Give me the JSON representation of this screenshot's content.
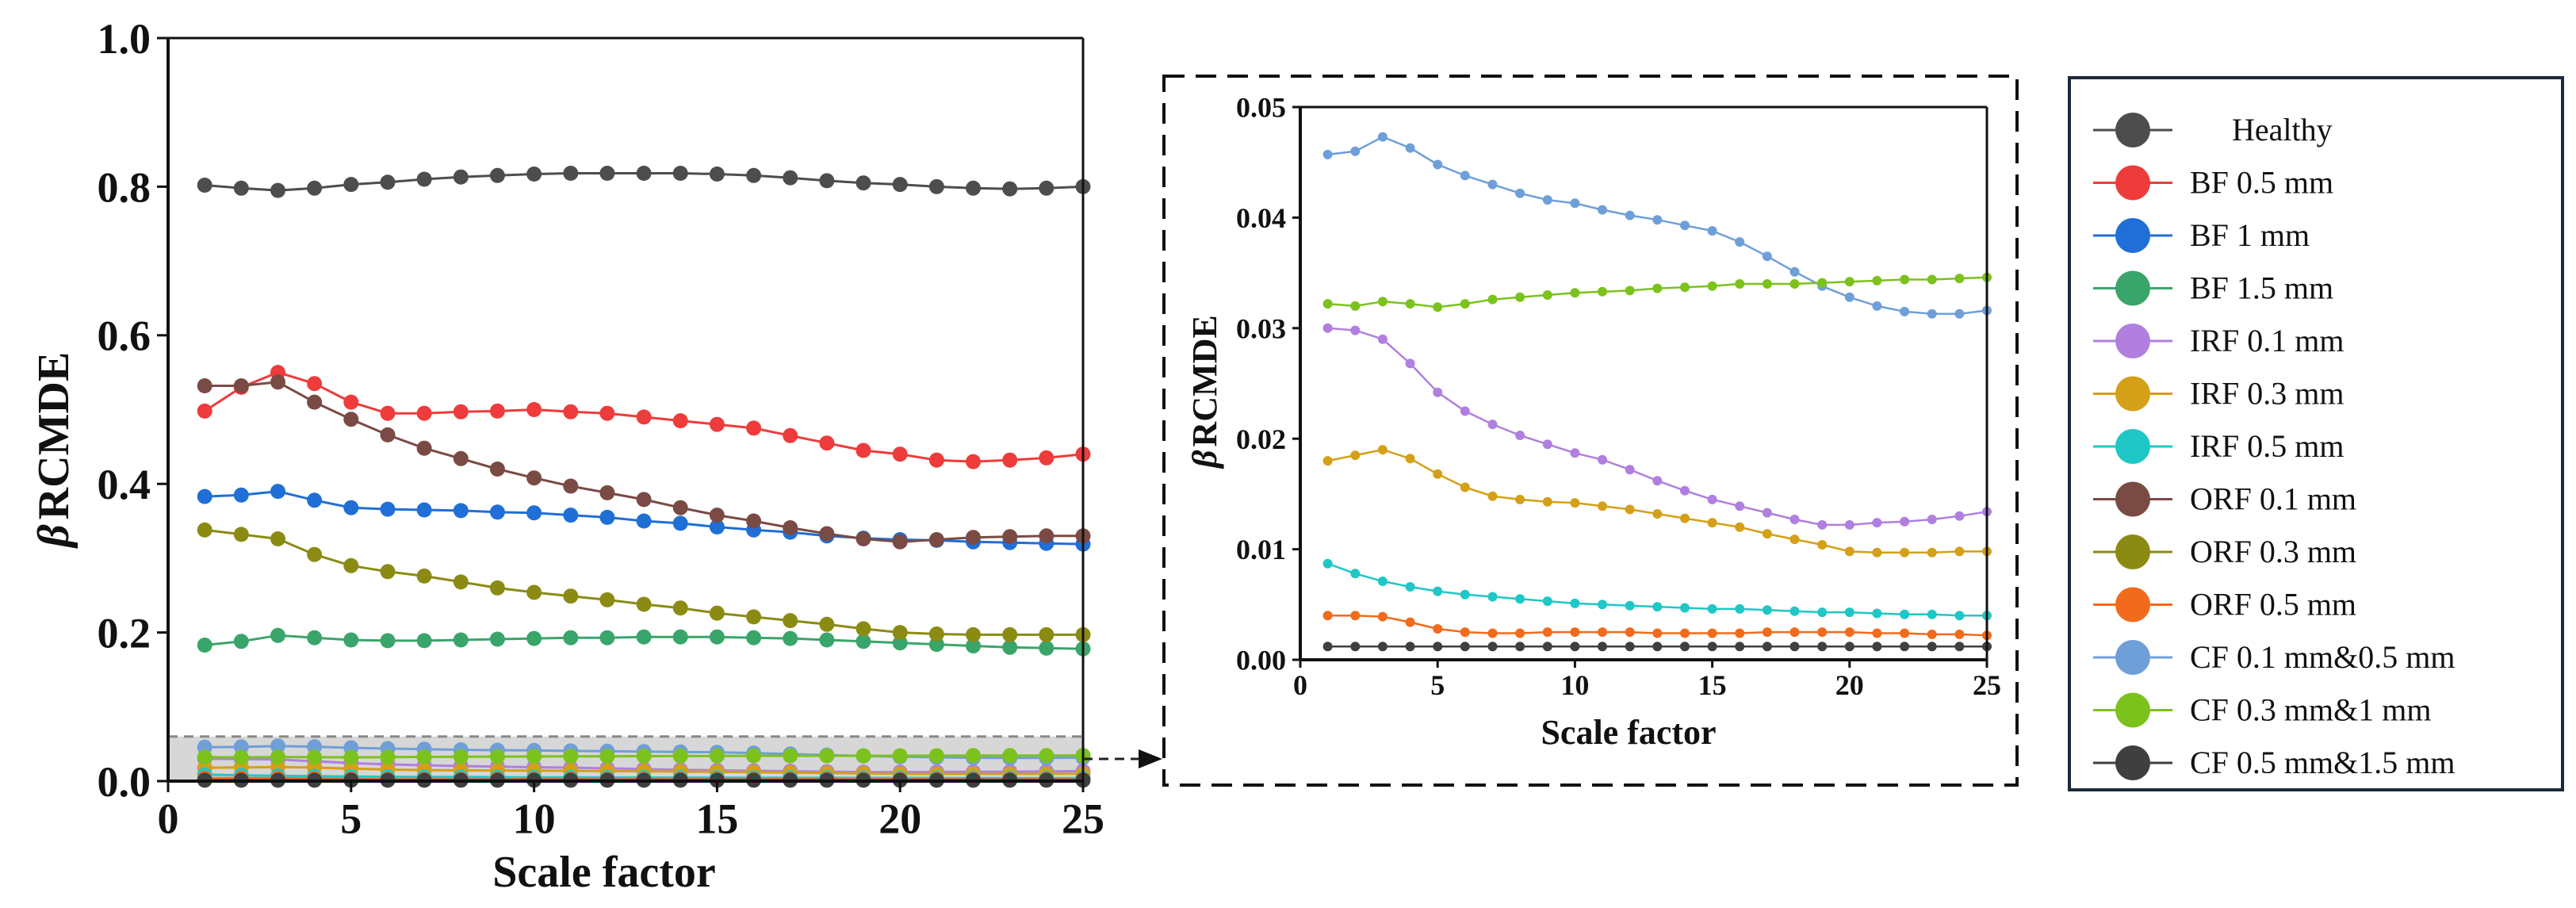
{
  "figure": {
    "main_xlabel": "Scale factor",
    "inset_xlabel": "Scale factor",
    "ylabel_greek": "β",
    "ylabel_main": "RCMDE",
    "ylabel_inset": "RCMDE"
  },
  "chart_data": [
    {
      "id": "main",
      "type": "line",
      "title": "",
      "xlabel": "Scale factor",
      "ylabel": "βRCMDE",
      "xlim": [
        0,
        25
      ],
      "ylim": [
        0,
        1.0
      ],
      "xticks": [
        0,
        5,
        10,
        15,
        20,
        25
      ],
      "yticks": [
        0.0,
        0.2,
        0.4,
        0.6,
        0.8,
        1.0
      ],
      "ytick_labels": [
        "0.0",
        "0.2",
        "0.4",
        "0.6",
        "0.8",
        "1.0"
      ],
      "xtick_labels": [
        "0",
        "5",
        "10",
        "15",
        "20",
        "25"
      ],
      "x": [
        1,
        2,
        3,
        4,
        5,
        6,
        7,
        8,
        9,
        10,
        11,
        12,
        13,
        14,
        15,
        16,
        17,
        18,
        19,
        20,
        21,
        22,
        23,
        24,
        25
      ],
      "highlight_region": {
        "x": [
          0,
          25
        ],
        "y": [
          0,
          0.06
        ]
      },
      "series": [
        {
          "name": "Healthy",
          "color": "#4d4d4d",
          "values": [
            0.802,
            0.798,
            0.795,
            0.798,
            0.803,
            0.806,
            0.81,
            0.813,
            0.815,
            0.817,
            0.818,
            0.818,
            0.818,
            0.818,
            0.817,
            0.815,
            0.812,
            0.808,
            0.805,
            0.803,
            0.8,
            0.798,
            0.797,
            0.798,
            0.8
          ]
        },
        {
          "name": "BF 0.5 mm",
          "color": "#ee3b3b",
          "values": [
            0.498,
            0.53,
            0.55,
            0.535,
            0.51,
            0.495,
            0.495,
            0.497,
            0.498,
            0.5,
            0.497,
            0.495,
            0.49,
            0.485,
            0.48,
            0.475,
            0.465,
            0.455,
            0.445,
            0.44,
            0.432,
            0.43,
            0.432,
            0.435,
            0.44
          ]
        },
        {
          "name": "BF 1 mm",
          "color": "#1f6fd6",
          "values": [
            0.383,
            0.385,
            0.39,
            0.378,
            0.368,
            0.366,
            0.365,
            0.364,
            0.362,
            0.361,
            0.358,
            0.355,
            0.35,
            0.347,
            0.342,
            0.338,
            0.335,
            0.33,
            0.327,
            0.325,
            0.324,
            0.322,
            0.321,
            0.32,
            0.319
          ]
        },
        {
          "name": "BF 1.5 mm",
          "color": "#3aa56a",
          "values": [
            0.183,
            0.188,
            0.196,
            0.193,
            0.19,
            0.189,
            0.189,
            0.19,
            0.191,
            0.192,
            0.193,
            0.193,
            0.194,
            0.194,
            0.194,
            0.193,
            0.192,
            0.19,
            0.188,
            0.186,
            0.184,
            0.182,
            0.18,
            0.179,
            0.178
          ]
        },
        {
          "name": "IRF 0.1 mm",
          "color": "#b07fe0",
          "values": [
            0.03,
            0.0298,
            0.029,
            0.0268,
            0.0242,
            0.0225,
            0.0213,
            0.0203,
            0.0195,
            0.0187,
            0.0181,
            0.0172,
            0.0162,
            0.0153,
            0.0145,
            0.0139,
            0.0133,
            0.0127,
            0.0122,
            0.0122,
            0.0124,
            0.0125,
            0.0127,
            0.013,
            0.0134
          ]
        },
        {
          "name": "IRF 0.3 mm",
          "color": "#d4a017",
          "values": [
            0.018,
            0.0185,
            0.019,
            0.0182,
            0.0168,
            0.0156,
            0.0148,
            0.0145,
            0.0143,
            0.0142,
            0.0139,
            0.0136,
            0.0132,
            0.0128,
            0.0124,
            0.012,
            0.0114,
            0.0109,
            0.0104,
            0.0098,
            0.0097,
            0.0097,
            0.0097,
            0.0098,
            0.0098
          ]
        },
        {
          "name": "IRF 0.5 mm",
          "color": "#1fc7c7",
          "values": [
            0.0087,
            0.0078,
            0.0071,
            0.0066,
            0.0062,
            0.0059,
            0.0057,
            0.0055,
            0.0053,
            0.0051,
            0.005,
            0.0049,
            0.0048,
            0.0047,
            0.0046,
            0.0046,
            0.0045,
            0.0044,
            0.0043,
            0.0043,
            0.0042,
            0.0041,
            0.0041,
            0.004,
            0.004
          ]
        },
        {
          "name": "ORF 0.1 mm",
          "color": "#7a4a45",
          "values": [
            0.532,
            0.532,
            0.537,
            0.51,
            0.487,
            0.466,
            0.448,
            0.434,
            0.42,
            0.408,
            0.397,
            0.388,
            0.379,
            0.368,
            0.358,
            0.35,
            0.341,
            0.333,
            0.326,
            0.322,
            0.325,
            0.328,
            0.329,
            0.33,
            0.33
          ]
        },
        {
          "name": "ORF 0.3 mm",
          "color": "#8b8b14",
          "values": [
            0.338,
            0.332,
            0.326,
            0.305,
            0.29,
            0.282,
            0.276,
            0.268,
            0.26,
            0.254,
            0.249,
            0.244,
            0.238,
            0.233,
            0.226,
            0.221,
            0.216,
            0.211,
            0.205,
            0.2,
            0.198,
            0.197,
            0.197,
            0.197,
            0.197
          ]
        },
        {
          "name": "ORF 0.5 mm",
          "color": "#f26a1b",
          "values": [
            0.004,
            0.004,
            0.0039,
            0.0034,
            0.0028,
            0.0025,
            0.0024,
            0.0024,
            0.0025,
            0.0025,
            0.0025,
            0.0025,
            0.0024,
            0.0024,
            0.0024,
            0.0024,
            0.0025,
            0.0025,
            0.0025,
            0.0025,
            0.0024,
            0.0024,
            0.0023,
            0.0023,
            0.0022
          ]
        },
        {
          "name": "CF 0.1 mm&0.5 mm",
          "color": "#6f9fd8",
          "values": [
            0.0457,
            0.046,
            0.0473,
            0.0463,
            0.0448,
            0.0438,
            0.043,
            0.0422,
            0.0416,
            0.0413,
            0.0407,
            0.0402,
            0.0398,
            0.0393,
            0.0388,
            0.0378,
            0.0365,
            0.0351,
            0.0338,
            0.0328,
            0.032,
            0.0315,
            0.0313,
            0.0313,
            0.0316
          ]
        },
        {
          "name": "CF 0.3 mm&1 mm",
          "color": "#7cc21d",
          "values": [
            0.0322,
            0.032,
            0.0324,
            0.0322,
            0.0319,
            0.0322,
            0.0326,
            0.0328,
            0.033,
            0.0332,
            0.0333,
            0.0334,
            0.0336,
            0.0337,
            0.0338,
            0.034,
            0.034,
            0.034,
            0.0341,
            0.0342,
            0.0343,
            0.0344,
            0.0344,
            0.0345,
            0.0346
          ]
        },
        {
          "name": "CF 0.5 mm&1.5 mm",
          "color": "#3f3f3f",
          "values": [
            0.0012,
            0.0012,
            0.0012,
            0.0012,
            0.0012,
            0.0012,
            0.0012,
            0.0012,
            0.0012,
            0.0012,
            0.0012,
            0.0012,
            0.0012,
            0.0012,
            0.0012,
            0.0012,
            0.0012,
            0.0012,
            0.0012,
            0.0012,
            0.0012,
            0.0012,
            0.0012,
            0.0012,
            0.0012
          ]
        }
      ]
    },
    {
      "id": "inset",
      "type": "line",
      "title": "",
      "xlabel": "Scale factor",
      "ylabel": "βRCMDE",
      "xlim": [
        0,
        25
      ],
      "ylim": [
        0,
        0.05
      ],
      "xticks": [
        0,
        5,
        10,
        15,
        20,
        25
      ],
      "yticks": [
        0.0,
        0.01,
        0.02,
        0.03,
        0.04,
        0.05
      ],
      "ytick_labels": [
        "0.00",
        "0.01",
        "0.02",
        "0.03",
        "0.04",
        "0.05"
      ],
      "xtick_labels": [
        "0",
        "5",
        "10",
        "15",
        "20",
        "25"
      ],
      "x": [
        1,
        2,
        3,
        4,
        5,
        6,
        7,
        8,
        9,
        10,
        11,
        12,
        13,
        14,
        15,
        16,
        17,
        18,
        19,
        20,
        21,
        22,
        23,
        24,
        25
      ],
      "series_names": [
        "CF 0.1 mm&0.5 mm",
        "CF 0.3 mm&1 mm",
        "IRF 0.1 mm",
        "IRF 0.3 mm",
        "IRF 0.5 mm",
        "ORF 0.5 mm",
        "CF 0.5 mm&1.5 mm"
      ]
    }
  ],
  "legend": [
    {
      "label": "Healthy",
      "color": "#4d4d4d"
    },
    {
      "label": "BF 0.5 mm",
      "color": "#ee3b3b"
    },
    {
      "label": "BF 1 mm",
      "color": "#1f6fd6"
    },
    {
      "label": "BF 1.5 mm",
      "color": "#3aa56a"
    },
    {
      "label": "IRF 0.1 mm",
      "color": "#b07fe0"
    },
    {
      "label": "IRF 0.3 mm",
      "color": "#d4a017"
    },
    {
      "label": "IRF 0.5 mm",
      "color": "#1fc7c7"
    },
    {
      "label": "ORF 0.1 mm",
      "color": "#7a4a45"
    },
    {
      "label": "ORF 0.3 mm",
      "color": "#8b8b14"
    },
    {
      "label": "ORF 0.5 mm",
      "color": "#f26a1b"
    },
    {
      "label": "CF 0.1 mm&0.5 mm",
      "color": "#6f9fd8"
    },
    {
      "label": "CF 0.3 mm&1 mm",
      "color": "#7cc21d"
    },
    {
      "label": "CF 0.5 mm&1.5 mm",
      "color": "#3f3f3f"
    }
  ]
}
